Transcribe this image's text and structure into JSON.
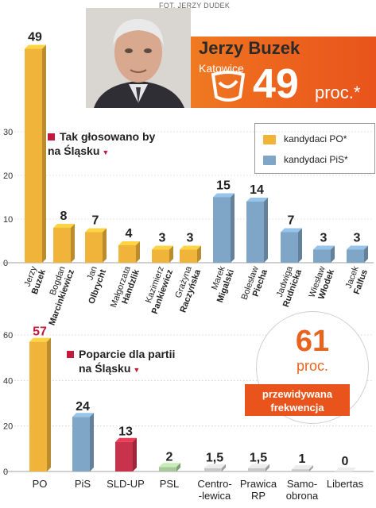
{
  "header": {
    "photo_credit": "FOT. JERZY DUDEK",
    "name": "Jerzy Buzek",
    "city": "Katowice",
    "big_value": "49",
    "big_unit": "proc.*",
    "logo_icon": "po-party-logo-icon"
  },
  "colors": {
    "po": "#f0b43a",
    "pis": "#7fa6c6",
    "sld": "#c8324a",
    "psl": "#a8c99a",
    "other": "#c9c9c9",
    "accent": "#e8541c"
  },
  "legend": {
    "po_label": "kandydaci PO*",
    "pis_label": "kandydaci PiS*"
  },
  "turnout": {
    "value": "61",
    "unit": "proc.",
    "label_line1": "przewidywana",
    "label_line2": "frekwencja"
  },
  "chart_data": [
    {
      "type": "bar",
      "title_line1": "Tak głosowano by",
      "title_line2": "na Śląsku",
      "ylim": [
        0,
        30
      ],
      "yticks": [
        0,
        10,
        20,
        30
      ],
      "candidates": [
        {
          "first": "Jerzy",
          "last": "Buzek",
          "value": 49,
          "label": "49",
          "party": "po"
        },
        {
          "first": "Bogdan",
          "last": "Marcinkiewicz",
          "value": 8,
          "label": "8",
          "party": "po"
        },
        {
          "first": "Jan",
          "last": "Olbrycht",
          "value": 7,
          "label": "7",
          "party": "po"
        },
        {
          "first": "Małgorzata",
          "last": "Handzlik",
          "value": 4,
          "label": "4",
          "party": "po"
        },
        {
          "first": "Kazimierz",
          "last": "Pankiewicz",
          "value": 3,
          "label": "3",
          "party": "po"
        },
        {
          "first": "Grażyna",
          "last": "Raczyńska",
          "value": 3,
          "label": "3",
          "party": "po"
        },
        {
          "first": "Marek",
          "last": "Migalski",
          "value": 15,
          "label": "15",
          "party": "pis"
        },
        {
          "first": "Bolesław",
          "last": "Piecha",
          "value": 14,
          "label": "14",
          "party": "pis"
        },
        {
          "first": "Jadwiga",
          "last": "Rudnicka",
          "value": 7,
          "label": "7",
          "party": "pis"
        },
        {
          "first": "Wiesław",
          "last": "Włodek",
          "value": 3,
          "label": "3",
          "party": "pis"
        },
        {
          "first": "Jacek",
          "last": "Falfus",
          "value": 3,
          "label": "3",
          "party": "pis"
        }
      ]
    },
    {
      "type": "bar",
      "title_line1": "Poparcie dla partii",
      "title_line2": "na Śląsku",
      "ylim": [
        0,
        60
      ],
      "yticks": [
        0,
        20,
        40,
        60
      ],
      "parties": [
        {
          "name": "PO",
          "value": 57,
          "label": "57",
          "color": "po"
        },
        {
          "name": "PiS",
          "value": 24,
          "label": "24",
          "color": "pis"
        },
        {
          "name": "SLD-UP",
          "value": 13,
          "label": "13",
          "color": "sld"
        },
        {
          "name": "PSL",
          "value": 2,
          "label": "2",
          "color": "psl"
        },
        {
          "name": "Centro-\n-lewica",
          "value": 1.5,
          "label": "1,5",
          "color": "other"
        },
        {
          "name": "Prawica\nRP",
          "value": 1.5,
          "label": "1,5",
          "color": "other"
        },
        {
          "name": "Samo-\nobrona",
          "value": 1,
          "label": "1",
          "color": "other"
        },
        {
          "name": "Libertas",
          "value": 0,
          "label": "0",
          "color": "other"
        }
      ]
    }
  ]
}
